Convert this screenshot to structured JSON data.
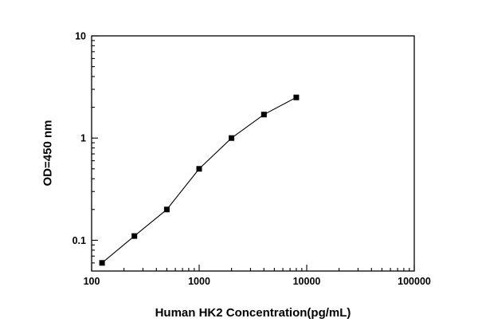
{
  "chart_data": {
    "type": "line",
    "title": "",
    "xlabel": "Human HK2 Concentration(pg/mL)",
    "ylabel": "OD=450 nm",
    "xscale": "log",
    "yscale": "log",
    "xlim": [
      100,
      100000
    ],
    "ylim": [
      0.05,
      10
    ],
    "x": [
      125,
      250,
      500,
      1000,
      2000,
      4000,
      8000
    ],
    "y": [
      0.06,
      0.11,
      0.2,
      0.5,
      1.0,
      1.7,
      2.5
    ],
    "x_ticks": [
      100,
      1000,
      10000,
      100000
    ],
    "x_tick_labels": [
      "100",
      "1000",
      "10000",
      "100000"
    ],
    "y_ticks": [
      0.1,
      1,
      10
    ],
    "y_tick_labels": [
      "0.1",
      "1",
      "10"
    ],
    "legend": "none",
    "grid": "off",
    "marker": "filled-square",
    "marker_color": "#000000",
    "line_color": "#000000",
    "frame_color": "#000000",
    "background_color": "#ffffff"
  }
}
